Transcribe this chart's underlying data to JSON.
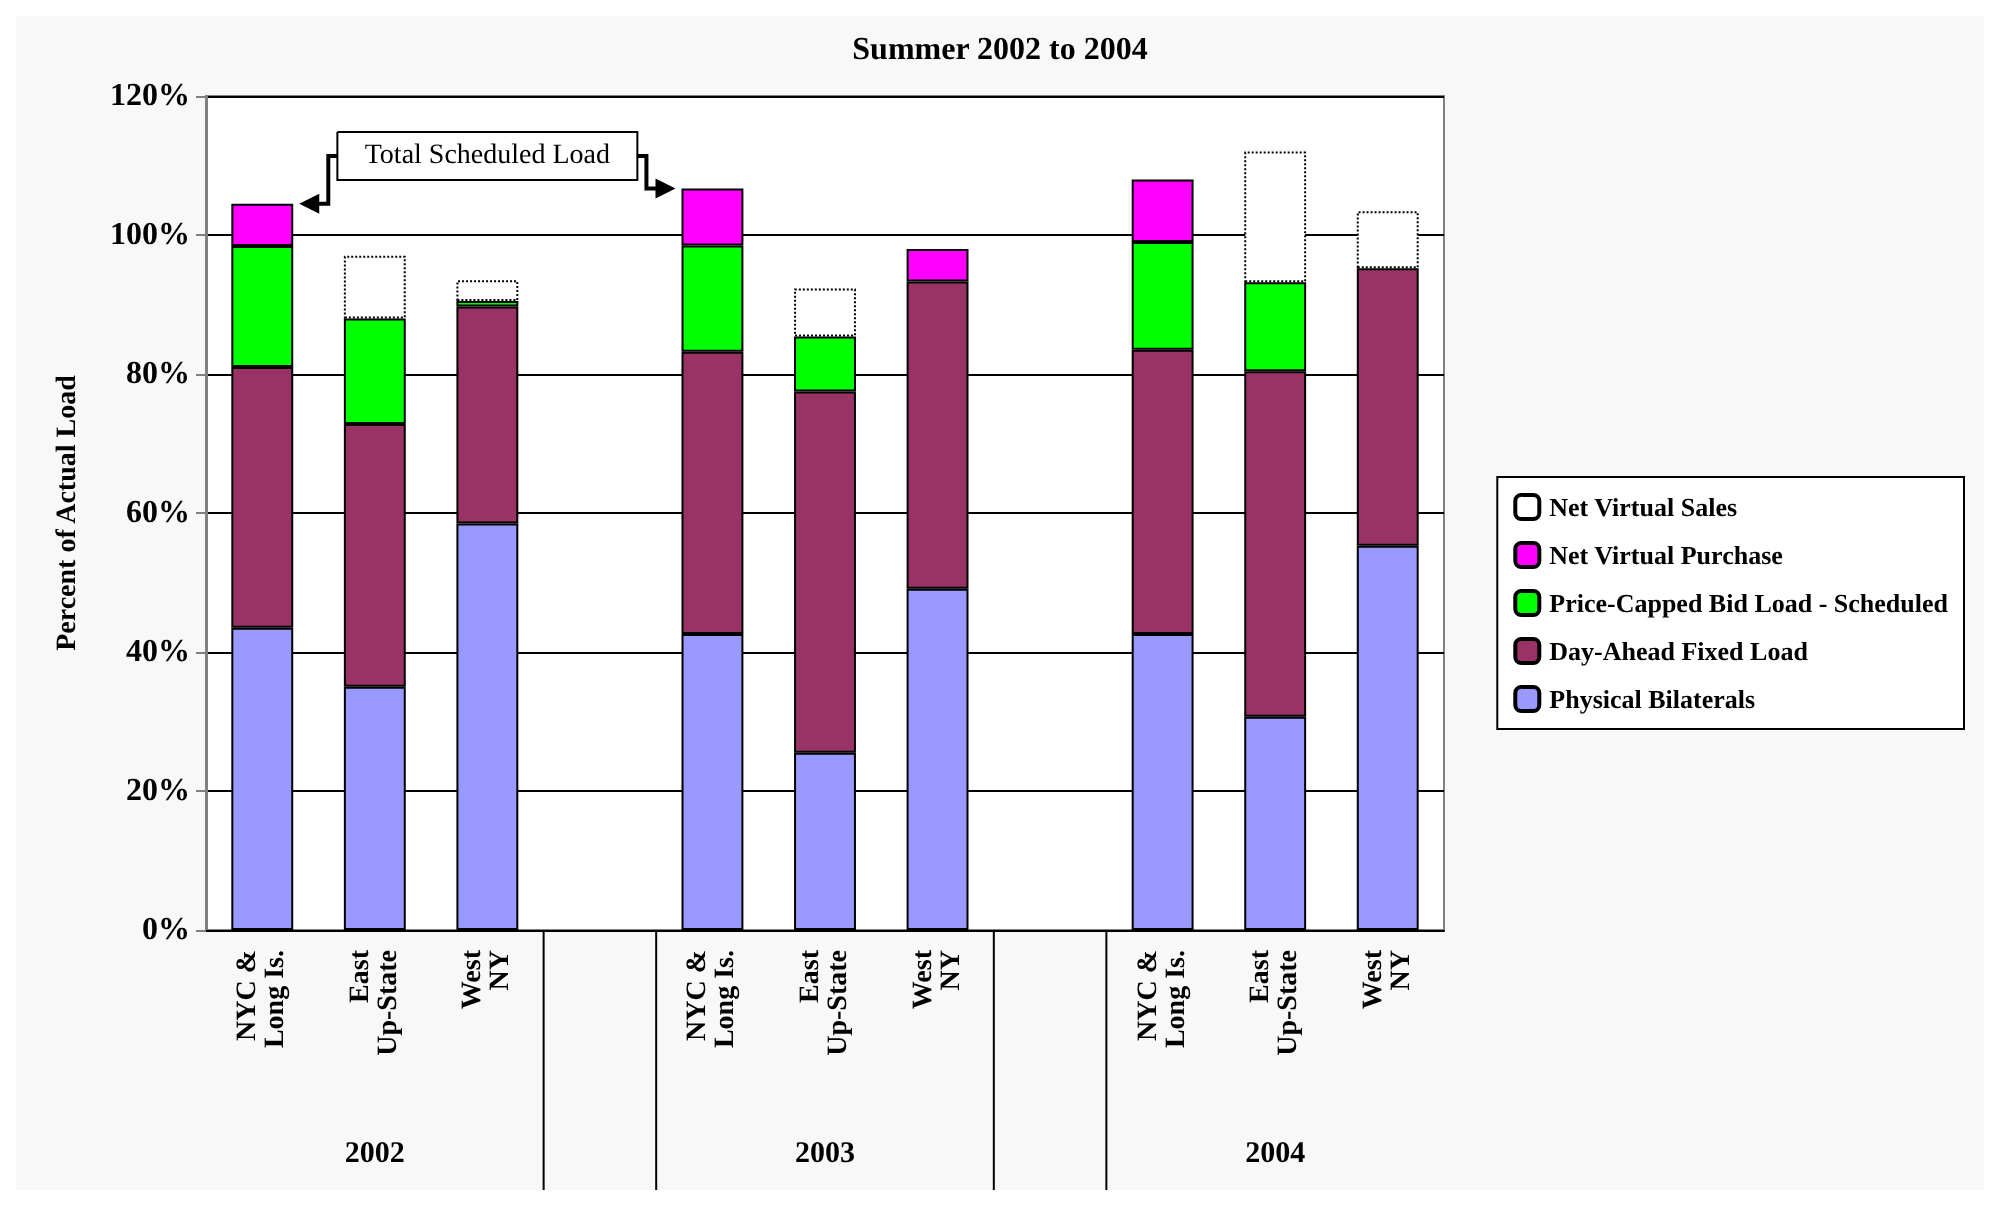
{
  "chart_data": {
    "type": "bar",
    "title": "Summer 2002 to 2004",
    "ylabel": "Percent of Actual Load",
    "categories": [
      "NYC &\nLong Is.",
      "East\nUp-State",
      "West\nNY",
      null,
      "NYC &\nLong Is.",
      "East\nUp-State",
      "West\nNY",
      null,
      "NYC &\nLong Is.",
      "East\nUp-State",
      "West\nNY"
    ],
    "stacked": true,
    "series": [
      {
        "name": "Physical Bilaterals",
        "color": "#9999ff",
        "values": [
          43.5,
          35,
          58.5,
          null,
          42.6,
          25.5,
          49.1,
          null,
          42.6,
          30.7,
          55.3
        ]
      },
      {
        "name": "Day-Ahead Fixed Load",
        "color": "#993366",
        "values": [
          37.5,
          37.8,
          31.2,
          null,
          40.6,
          52,
          44.2,
          null,
          40.9,
          49.7,
          39.9
        ]
      },
      {
        "name": "Price-Capped Bid Load - Scheduled",
        "color": "#00ff00",
        "values": [
          17.4,
          15.2,
          0.8,
          null,
          15.3,
          7.9,
          null,
          null,
          15.5,
          12.8,
          null
        ]
      },
      {
        "name": "Net Virtual Purchase",
        "color": "#ff00ff",
        "values": [
          6.1,
          null,
          null,
          null,
          8.2,
          null,
          4.7,
          null,
          9,
          null,
          null
        ]
      },
      {
        "name": "Net Virtual Sales",
        "color": "#ffffff",
        "line_style": "dotted",
        "values": [
          null,
          9,
          3,
          null,
          null,
          6.9,
          null,
          null,
          null,
          18.8,
          8.2
        ]
      }
    ],
    "ylim": [
      0,
      120
    ],
    "yticks": [
      {
        "value": 0,
        "label": "0%"
      },
      {
        "value": 20,
        "label": "20%"
      },
      {
        "value": 40,
        "label": "40%"
      },
      {
        "value": 60,
        "label": "60%"
      },
      {
        "value": 80,
        "label": "80%"
      },
      {
        "value": 100,
        "label": "100%"
      },
      {
        "value": 120,
        "label": "120%"
      }
    ],
    "grid": "y",
    "legend": "right",
    "annotations": [
      "Total Scheduled Load",
      "2002",
      "2003",
      "2004"
    ]
  }
}
